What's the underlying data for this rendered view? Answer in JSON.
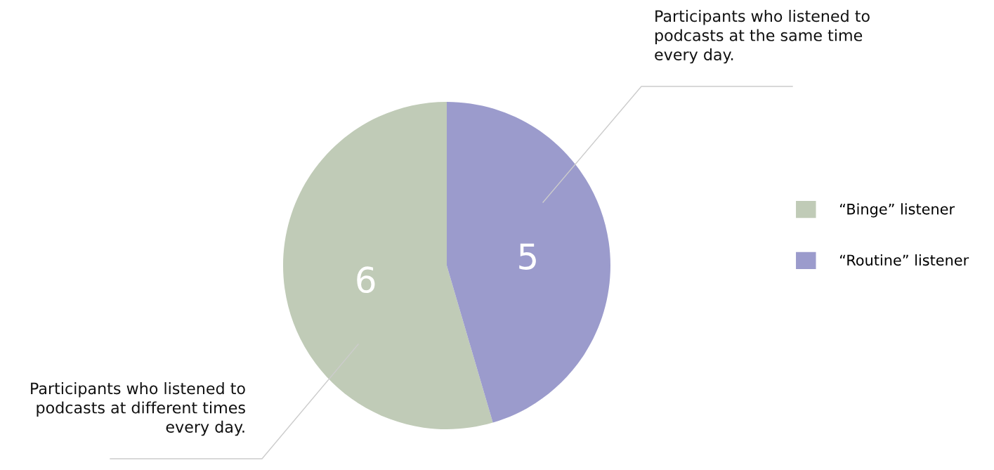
{
  "chart_data": {
    "type": "pie",
    "categories": [
      "“Binge” listener",
      "“Routine” listener"
    ],
    "values": [
      6,
      5
    ],
    "colors": [
      "#c0cbb7",
      "#9b9bcc"
    ],
    "data_labels": true,
    "legend": "right",
    "annotations": [
      "Participants who listened to\npodcasts at the same time\nevery day.",
      "Participants who listened to\npodcasts at different times\nevery day."
    ]
  }
}
